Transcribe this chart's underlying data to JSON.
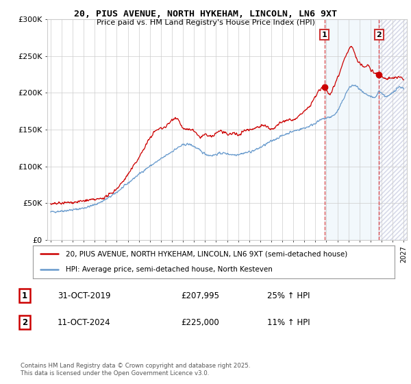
{
  "title_line1": "20, PIUS AVENUE, NORTH HYKEHAM, LINCOLN, LN6 9XT",
  "title_line2": "Price paid vs. HM Land Registry's House Price Index (HPI)",
  "x_start": 1995.0,
  "x_end": 2027.0,
  "y_min": 0,
  "y_max": 300000,
  "y_ticks": [
    0,
    50000,
    100000,
    150000,
    200000,
    250000,
    300000
  ],
  "y_tick_labels": [
    "£0",
    "£50K",
    "£100K",
    "£150K",
    "£200K",
    "£250K",
    "£300K"
  ],
  "x_ticks": [
    1995,
    1996,
    1997,
    1998,
    1999,
    2000,
    2001,
    2002,
    2003,
    2004,
    2005,
    2006,
    2007,
    2008,
    2009,
    2010,
    2011,
    2012,
    2013,
    2014,
    2015,
    2016,
    2017,
    2018,
    2019,
    2020,
    2021,
    2022,
    2023,
    2024,
    2025,
    2026,
    2027
  ],
  "line1_color": "#cc0000",
  "line2_color": "#6699cc",
  "marker1_date": 2019.83,
  "marker1_value": 207995,
  "marker1_label": "1",
  "marker2_date": 2024.78,
  "marker2_value": 225000,
  "marker2_label": "2",
  "vline1_x": 2019.83,
  "vline2_x": 2024.78,
  "legend_line1": "20, PIUS AVENUE, NORTH HYKEHAM, LINCOLN, LN6 9XT (semi-detached house)",
  "legend_line2": "HPI: Average price, semi-detached house, North Kesteven",
  "table_row1": [
    "1",
    "31-OCT-2019",
    "£207,995",
    "25% ↑ HPI"
  ],
  "table_row2": [
    "2",
    "11-OCT-2024",
    "£225,000",
    "11% ↑ HPI"
  ],
  "footnote": "Contains HM Land Registry data © Crown copyright and database right 2025.\nThis data is licensed under the Open Government Licence v3.0.",
  "bg_color": "#ffffff",
  "grid_color": "#cccccc",
  "shade_color": "#ddeeff",
  "hatch_color": "#bbbbcc"
}
